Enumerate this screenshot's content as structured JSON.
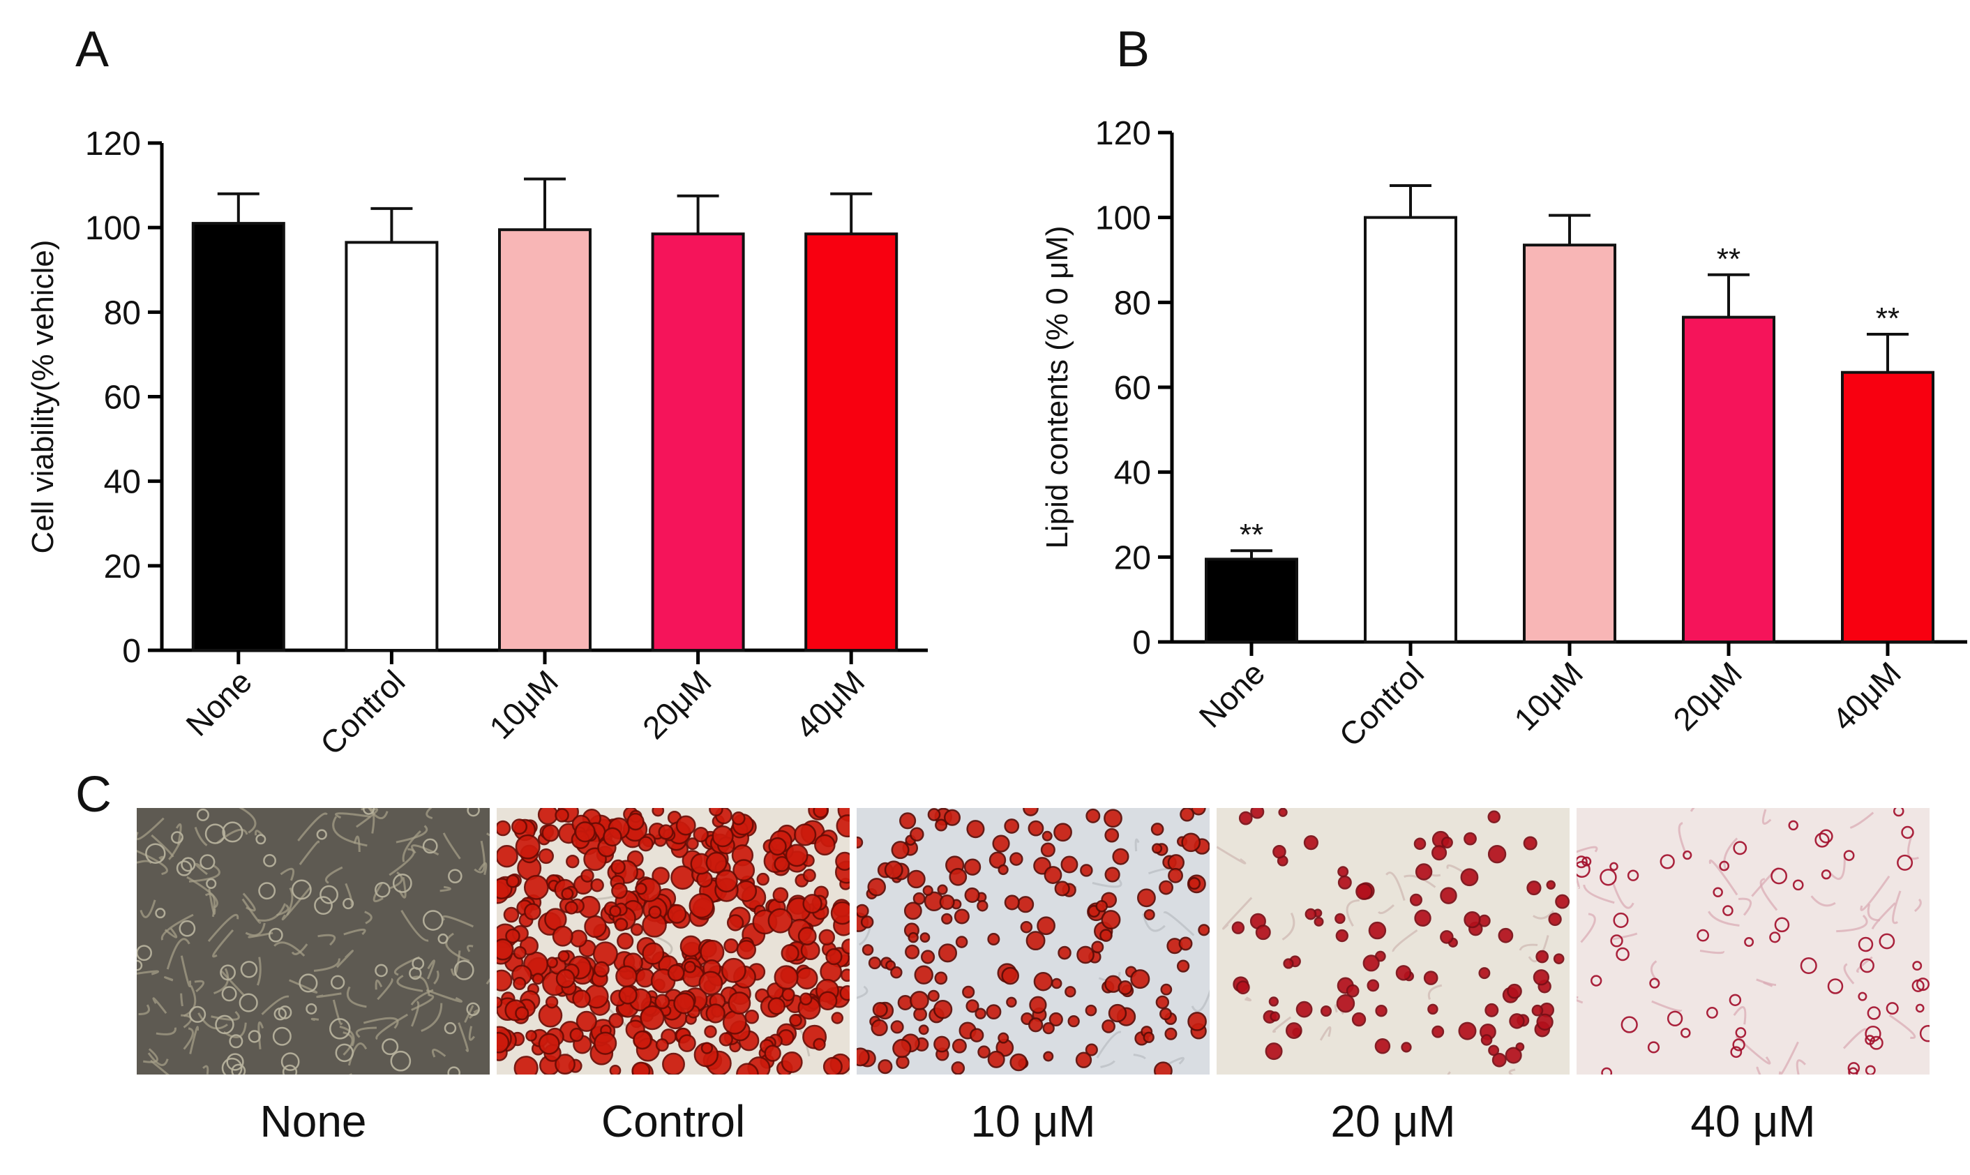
{
  "panels": {
    "a": {
      "letter": "A"
    },
    "b": {
      "letter": "B"
    },
    "c": {
      "letter": "C",
      "images": [
        {
          "label": "None"
        },
        {
          "label": "Control"
        },
        {
          "label": "10 μM"
        },
        {
          "label": "20 μM"
        },
        {
          "label": "40 μM"
        }
      ]
    }
  },
  "chart_data": [
    {
      "type": "bar",
      "panel": "A",
      "ylabel": "Cell viability(% vehicle)",
      "xlabel": "",
      "ylim": [
        0,
        120
      ],
      "yticks": [
        0,
        20,
        40,
        60,
        80,
        100,
        120
      ],
      "categories": [
        "None",
        "Control",
        "10μM",
        "20μM",
        "40μM"
      ],
      "values": [
        101,
        96.5,
        99.5,
        98.5,
        98.5
      ],
      "errors": [
        7,
        8,
        12,
        9,
        9.5
      ],
      "annotations": [
        "",
        "",
        "",
        "",
        ""
      ],
      "colors": [
        "#000000",
        "#ffffff",
        "#f8b6b6",
        "#f5145a",
        "#f80010"
      ]
    },
    {
      "type": "bar",
      "panel": "B",
      "ylabel": "Lipid contents (% 0 μM)",
      "xlabel": "",
      "ylim": [
        0,
        120
      ],
      "yticks": [
        0,
        20,
        40,
        60,
        80,
        100,
        120
      ],
      "categories": [
        "None",
        "Control",
        "10μM",
        "20μM",
        "40μM"
      ],
      "values": [
        19.5,
        100,
        93.5,
        76.5,
        63.5
      ],
      "errors": [
        2,
        7.5,
        7,
        10,
        9
      ],
      "annotations": [
        "**",
        "",
        "",
        "**",
        "**"
      ],
      "colors": [
        "#000000",
        "#ffffff",
        "#f8b6b6",
        "#f5145a",
        "#f80010"
      ]
    }
  ]
}
